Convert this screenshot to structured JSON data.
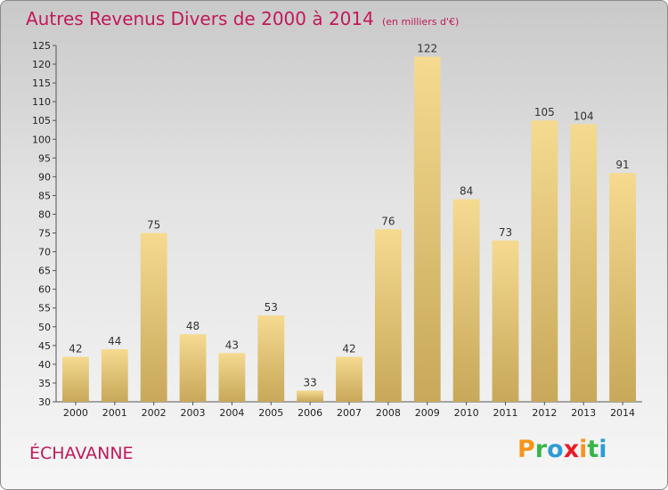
{
  "header": {
    "title": "Autres Revenus Divers de 2000 à 2014",
    "unit": "(en milliers d'€)"
  },
  "footer": {
    "commune": "ÉCHAVANNE",
    "logo_letters": [
      "P",
      "r",
      "o",
      "x",
      "i",
      "t",
      "i"
    ],
    "logo_colors": [
      "#f7941d",
      "#39b54a",
      "#2e9bd6",
      "#ed1c24",
      "#f7941d",
      "#39b54a",
      "#2e9bd6"
    ]
  },
  "colors": {
    "bar_top": "#f5da90",
    "bar_bottom": "#c8a85a",
    "title": "#c2185b"
  },
  "chart_data": {
    "type": "bar",
    "categories": [
      "2000",
      "2001",
      "2002",
      "2003",
      "2004",
      "2005",
      "2006",
      "2007",
      "2008",
      "2009",
      "2010",
      "2011",
      "2012",
      "2013",
      "2014"
    ],
    "values": [
      42,
      44,
      75,
      48,
      43,
      53,
      33,
      42,
      76,
      122,
      84,
      73,
      105,
      104,
      91
    ],
    "ylim": [
      30,
      125
    ],
    "yticks": [
      30,
      35,
      40,
      45,
      50,
      55,
      60,
      65,
      70,
      75,
      80,
      85,
      90,
      95,
      100,
      105,
      110,
      115,
      120,
      125
    ],
    "grid": false
  }
}
